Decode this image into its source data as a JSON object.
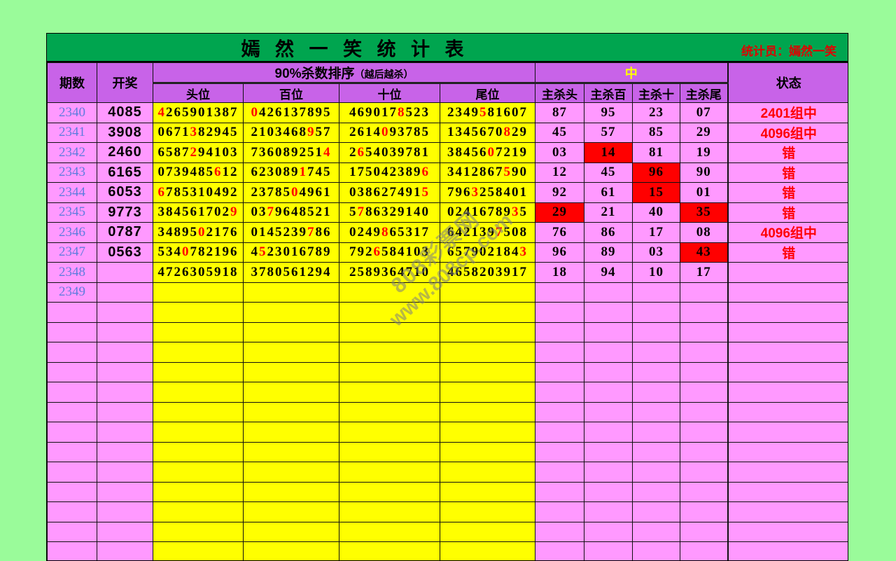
{
  "title_bar": {
    "title": "嫣 然 一 笑 统 计 表",
    "clerk": "统计员：嫣然一笑"
  },
  "header": {
    "period": "期数",
    "draw": "开奖",
    "kill_group": "90%杀数排序",
    "kill_group_note": "（越后越杀）",
    "hit_group": "中",
    "status": "状态",
    "sub": [
      "头位",
      "百位",
      "十位",
      "尾位",
      "主杀头",
      "主杀百",
      "主杀十",
      "主杀尾"
    ]
  },
  "watermark": {
    "line1": "808彩票网",
    "line2": "www.808cp.com"
  },
  "colors": {
    "page_bg": "#9AFB9A",
    "title_bar_bg": "#00A54F",
    "header_bg": "#C863E8",
    "cell_pink": "#FF99FF",
    "cell_yellow": "#FFFF00",
    "cell_hot_red": "#FF0000",
    "period_blue": "#5F7CDE",
    "status_red": "#FF0000",
    "red_digit": "#FF0000"
  },
  "rows": [
    {
      "period": "2340",
      "draw": "4085",
      "digits": [
        "4265901387",
        "0426137895",
        "4690178523",
        "2349581607"
      ],
      "red_idx": [
        0,
        0,
        6,
        4
      ],
      "kills": [
        "87",
        "95",
        "23",
        "07"
      ],
      "kill_hot": [
        false,
        false,
        false,
        false
      ],
      "status": "2401组中"
    },
    {
      "period": "2341",
      "draw": "3908",
      "digits": [
        "0671382945",
        "2103468957",
        "2614093785",
        "1345670829"
      ],
      "red_idx": [
        4,
        7,
        4,
        7
      ],
      "kills": [
        "45",
        "57",
        "85",
        "29"
      ],
      "kill_hot": [
        false,
        false,
        false,
        false
      ],
      "status": "4096组中"
    },
    {
      "period": "2342",
      "draw": "2460",
      "digits": [
        "6587294103",
        "7360892514",
        "2654039781",
        "3845607219"
      ],
      "red_idx": [
        4,
        9,
        1,
        5
      ],
      "kills": [
        "03",
        "14",
        "81",
        "19"
      ],
      "kill_hot": [
        false,
        true,
        false,
        false
      ],
      "status": "错"
    },
    {
      "period": "2343",
      "draw": "6165",
      "digits": [
        "0739485612",
        "6230891745",
        "1750423896",
        "3412867590"
      ],
      "red_idx": [
        7,
        6,
        9,
        7
      ],
      "kills": [
        "12",
        "45",
        "96",
        "90"
      ],
      "kill_hot": [
        false,
        false,
        true,
        false
      ],
      "status": "错"
    },
    {
      "period": "2344",
      "draw": "6053",
      "digits": [
        "6785310492",
        "2378504961",
        "0386274915",
        "7963258401"
      ],
      "red_idx": [
        0,
        5,
        9,
        3
      ],
      "kills": [
        "92",
        "61",
        "15",
        "01"
      ],
      "kill_hot": [
        false,
        false,
        true,
        false
      ],
      "status": "错"
    },
    {
      "period": "2345",
      "draw": "9773",
      "digits": [
        "3845617029",
        "0379648521",
        "5786329140",
        "0241678935"
      ],
      "red_idx": [
        9,
        2,
        1,
        8
      ],
      "kills": [
        "29",
        "21",
        "40",
        "35"
      ],
      "kill_hot": [
        true,
        false,
        false,
        true
      ],
      "status": "错"
    },
    {
      "period": "2346",
      "draw": "0787",
      "digits": [
        "3489502176",
        "0145239786",
        "0249865317",
        "6421397508"
      ],
      "red_idx": [
        5,
        7,
        4,
        6
      ],
      "kills": [
        "76",
        "86",
        "17",
        "08"
      ],
      "kill_hot": [
        false,
        false,
        false,
        false
      ],
      "status": "4096组中"
    },
    {
      "period": "2347",
      "draw": "0563",
      "digits": [
        "5340782196",
        "4523016789",
        "7926584103",
        "6579021843"
      ],
      "red_idx": [
        3,
        1,
        3,
        9
      ],
      "kills": [
        "96",
        "89",
        "03",
        "43"
      ],
      "kill_hot": [
        false,
        false,
        false,
        true
      ],
      "status": "错"
    },
    {
      "period": "2348",
      "draw": "",
      "digits": [
        "4726305918",
        "3780561294",
        "2589364710",
        "4658203917"
      ],
      "red_idx": [
        -1,
        -1,
        -1,
        -1
      ],
      "kills": [
        "18",
        "94",
        "10",
        "17"
      ],
      "kill_hot": [
        false,
        false,
        false,
        false
      ],
      "status": ""
    },
    {
      "period": "2349",
      "draw": "",
      "digits": [
        "",
        "",
        "",
        ""
      ],
      "red_idx": [
        -1,
        -1,
        -1,
        -1
      ],
      "kills": [
        "",
        "",
        "",
        ""
      ],
      "kill_hot": [
        false,
        false,
        false,
        false
      ],
      "status": ""
    }
  ],
  "empty_row_count": 13
}
